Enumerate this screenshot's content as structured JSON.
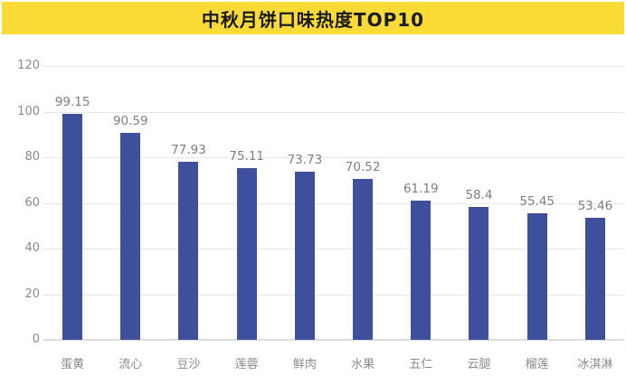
{
  "title": {
    "text": "中秋月饼口味热度TOP10",
    "banner_color": "#FADB36",
    "text_color": "#1a1a1a"
  },
  "chart_data": {
    "type": "bar",
    "title": "中秋月饼口味热度TOP10",
    "categories": [
      "蛋黄",
      "流心",
      "豆沙",
      "莲蓉",
      "鲜肉",
      "水果",
      "五仁",
      "云腿",
      "榴莲",
      "冰淇淋"
    ],
    "values": [
      99.15,
      90.59,
      77.93,
      75.11,
      73.73,
      70.52,
      61.19,
      58.4,
      55.45,
      53.46
    ],
    "value_labels": [
      "99.15",
      "90.59",
      "77.93",
      "75.11",
      "73.73",
      "70.52",
      "61.19",
      "58.4",
      "55.45",
      "53.46"
    ],
    "xlabel": "",
    "ylabel": "",
    "ylim": [
      0,
      120
    ],
    "yticks": [
      0,
      20,
      40,
      60,
      80,
      100,
      120
    ],
    "grid": "horizontal",
    "legend": "none",
    "bar_color": "#3E509B",
    "grid_color": "#e8e8e8",
    "label_color": "#7e7e7e",
    "axis_text_color": "#8a8a8a"
  }
}
